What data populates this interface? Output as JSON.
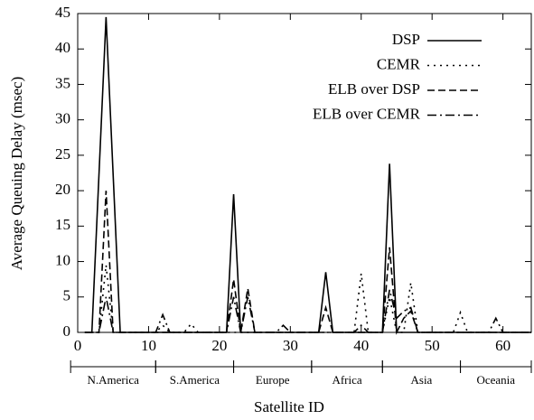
{
  "chart_data": {
    "type": "line",
    "xlabel": "Satellite ID",
    "ylabel": "Average Queuing Delay (msec)",
    "xlim": [
      0,
      64
    ],
    "ylim": [
      0,
      45
    ],
    "xticks": [
      0,
      10,
      20,
      30,
      40,
      50,
      60
    ],
    "yticks": [
      0,
      5,
      10,
      15,
      20,
      25,
      30,
      35,
      40,
      45
    ],
    "legend": "upper right",
    "series": [
      {
        "name": "DSP",
        "color": "#000000",
        "style": "solid",
        "x": [
          1,
          2,
          4,
          6,
          21,
          22,
          23,
          34,
          35,
          36,
          43,
          44,
          45,
          64
        ],
        "values": [
          0,
          0,
          44.5,
          0,
          0,
          19.5,
          0,
          0,
          8.5,
          0,
          0,
          23.8,
          0,
          0
        ]
      },
      {
        "name": "CEMR",
        "color": "#000000",
        "style": "dotted",
        "x": [
          1,
          3,
          4,
          5,
          11,
          12,
          13,
          15,
          16,
          17,
          39,
          40,
          41,
          43,
          44,
          45,
          46,
          47,
          48,
          53,
          54,
          55,
          64
        ],
        "values": [
          0,
          0,
          9.5,
          0,
          0,
          1,
          0,
          0,
          1.2,
          0,
          0,
          8.3,
          0,
          0,
          5,
          0,
          0,
          7,
          0,
          0,
          2.8,
          0,
          0
        ]
      },
      {
        "name": "ELB over DSP",
        "color": "#000000",
        "style": "dashed",
        "x": [
          1,
          3,
          4,
          5,
          21,
          22,
          23,
          24,
          25,
          34,
          35,
          36,
          43,
          44,
          45,
          46,
          47,
          48,
          64
        ],
        "values": [
          0,
          0,
          20,
          0,
          0,
          7.5,
          0,
          6.2,
          0,
          0,
          3.5,
          0,
          0,
          12,
          0,
          2,
          3,
          0,
          0
        ]
      },
      {
        "name": "ELB over CEMR",
        "color": "#000000",
        "style": "dashdot",
        "x": [
          1,
          3,
          4,
          5,
          11,
          12,
          13,
          21,
          22,
          23,
          24,
          25,
          28,
          29,
          30,
          39,
          40,
          41,
          43,
          44,
          45,
          46,
          47,
          48,
          58,
          59,
          60,
          64
        ],
        "values": [
          0,
          0,
          5,
          0,
          0,
          2.5,
          0,
          0,
          5,
          0,
          5,
          0,
          0,
          1,
          0,
          0,
          1,
          0,
          0,
          6,
          2,
          3,
          3.5,
          0,
          0,
          2,
          0,
          0
        ]
      }
    ],
    "regions": [
      {
        "name": "N.America",
        "start": -1,
        "end": 11
      },
      {
        "name": "S.America",
        "start": 11,
        "end": 22
      },
      {
        "name": "Europe",
        "start": 22,
        "end": 33
      },
      {
        "name": "Africa",
        "start": 33,
        "end": 43
      },
      {
        "name": "Asia",
        "start": 43,
        "end": 54
      },
      {
        "name": "Oceania",
        "start": 54,
        "end": 64
      }
    ]
  }
}
